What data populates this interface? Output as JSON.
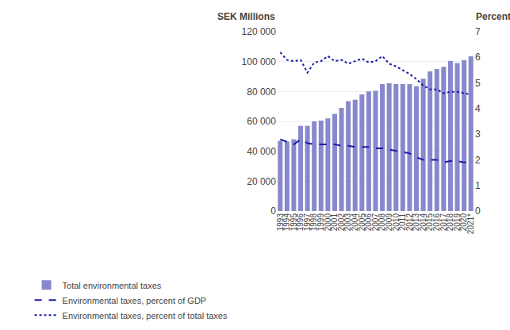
{
  "chart_data": {
    "type": "bar",
    "ylabel": "SEK Millions",
    "y2label": "Percent",
    "categories": [
      "1993",
      "1994",
      "1995",
      "1996",
      "1997",
      "1998",
      "1999",
      "2000",
      "2001",
      "2002",
      "2003",
      "2004",
      "2005",
      "2006",
      "2007",
      "2008",
      "2009",
      "2010",
      "2011",
      "2012",
      "2013",
      "2014",
      "2015",
      "2016",
      "2017",
      "2018",
      "2019",
      "2020",
      "2021*"
    ],
    "series": [
      {
        "name": "Total environmental taxes",
        "type": "bar",
        "color": "#8888cc",
        "values": [
          47000,
          46500,
          48000,
          57000,
          57000,
          60000,
          60500,
          62000,
          65000,
          69000,
          73500,
          74500,
          78000,
          80000,
          80500,
          85000,
          85500,
          85000,
          85000,
          85000,
          83500,
          88500,
          93500,
          95000,
          96500,
          100500,
          99000,
          101000,
          103500
        ]
      },
      {
        "name": "Environmental taxes, percent of GDP",
        "type": "line",
        "axis": "y2",
        "color": "#1a1aaa",
        "line_style": "dashed",
        "values": [
          2.8,
          2.7,
          2.6,
          2.8,
          2.65,
          2.6,
          2.6,
          2.6,
          2.6,
          2.55,
          2.55,
          2.5,
          2.5,
          2.5,
          2.45,
          2.45,
          2.4,
          2.35,
          2.3,
          2.25,
          2.1,
          2.0,
          2.0,
          2.0,
          1.9,
          1.95,
          1.95,
          1.9,
          1.9
        ]
      },
      {
        "name": "Environmental taxes, percent of total taxes",
        "type": "line",
        "axis": "y2",
        "color": "#1a1aaa",
        "line_style": "dotted",
        "values": [
          6.2,
          5.9,
          5.85,
          5.9,
          5.4,
          5.8,
          5.85,
          6.05,
          5.85,
          5.9,
          5.75,
          5.85,
          5.95,
          5.8,
          5.85,
          6.05,
          5.75,
          5.65,
          5.5,
          5.35,
          5.15,
          4.9,
          4.75,
          4.75,
          4.6,
          4.65,
          4.65,
          4.6,
          4.55
        ]
      }
    ],
    "ylim": [
      0,
      120000
    ],
    "yticks": [
      0,
      {
        "value": 20000,
        "label": "20 000"
      },
      {
        "value": 40000,
        "label": "40 000"
      },
      {
        "value": 60000,
        "label": "60 000"
      },
      {
        "value": 80000,
        "label": "80 000"
      },
      {
        "value": 100000,
        "label": "100 000"
      },
      {
        "value": 120000,
        "label": "120 000"
      }
    ],
    "y2lim": [
      0,
      7
    ],
    "y2ticks": [
      0,
      1,
      2,
      3,
      4,
      5,
      6,
      7
    ],
    "grid": true,
    "legend": "bottom"
  }
}
